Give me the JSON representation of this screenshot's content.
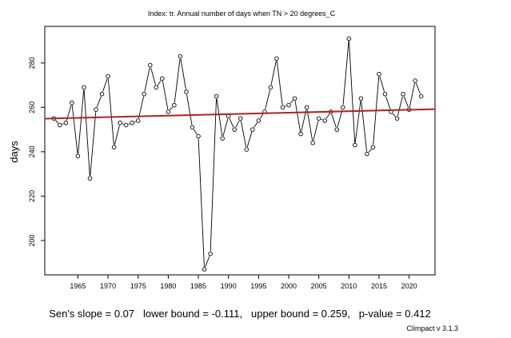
{
  "chart_data": {
    "type": "line",
    "title": "Index: tr. Annual number of days when TN > 20 degrees_C",
    "xlabel": "",
    "ylabel": "days",
    "xlim": [
      1959.5,
      2024.3
    ],
    "ylim": [
      184.5,
      296.5
    ],
    "xticks": [
      1965,
      1970,
      1975,
      1980,
      1985,
      1990,
      1995,
      2000,
      2005,
      2010,
      2015,
      2020
    ],
    "yticks": [
      200,
      220,
      240,
      260,
      280
    ],
    "grid": false,
    "series": [
      {
        "x": [
          1961,
          1962,
          1963,
          1964,
          1965,
          1966,
          1967,
          1968,
          1969,
          1970,
          1971,
          1972,
          1973,
          1974,
          1975,
          1976,
          1977,
          1978,
          1979,
          1980,
          1981,
          1982,
          1983,
          1984,
          1985,
          1986,
          1987,
          1988,
          1989,
          1990,
          1991,
          1992,
          1993,
          1994,
          1995,
          1996,
          1997,
          1998,
          1999,
          2000,
          2001,
          2002,
          2003,
          2004,
          2005,
          2006,
          2007,
          2008,
          2009,
          2010,
          2011,
          2012,
          2013,
          2014,
          2015,
          2016,
          2017,
          2018,
          2019,
          2020,
          2021,
          2022
        ],
        "values": [
          255,
          252,
          253,
          262,
          238,
          269,
          228,
          259,
          266,
          274,
          242,
          253,
          252,
          253,
          254,
          266,
          279,
          269,
          273,
          258,
          261,
          283,
          267,
          251,
          247,
          187,
          194,
          265,
          246,
          256,
          250,
          255,
          241,
          250,
          254,
          258,
          269,
          282,
          260,
          261,
          264,
          248,
          260,
          244,
          255,
          254,
          258,
          250,
          260,
          291,
          243,
          264,
          239,
          242,
          275,
          266,
          258,
          255,
          266,
          259,
          272,
          265
        ],
        "color": "#000000"
      }
    ],
    "trend_line": {
      "x": [
        1959.5,
        2024.3
      ],
      "values": [
        254.9,
        259.2
      ],
      "color": "#b22222"
    },
    "annotation": "Sen's slope = 0.07   lower bound = -0.111,   upper bound = 0.259,   p-value = 0.412",
    "credit": "Climpact v 3.1.3"
  }
}
